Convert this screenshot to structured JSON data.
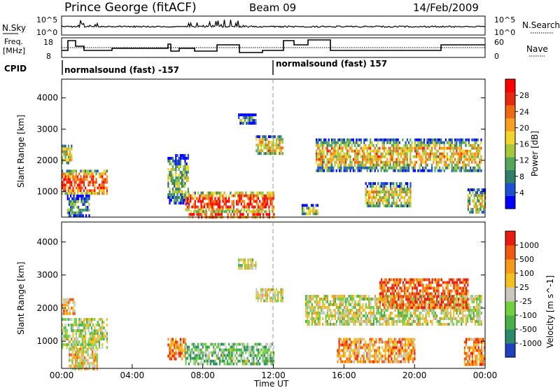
{
  "header": {
    "title": "Prince George (fitACF)",
    "beam": "Beam 09",
    "date": "14/Feb/2009"
  },
  "panels": {
    "nsky_label": "N.Sky",
    "nsearch_label": "N.Search",
    "freq_label_1": "Freq.",
    "freq_label_2": "[MHz]",
    "nave_label": "Nave",
    "cpid_label": "CPID",
    "nsky_ticks": [
      "10^5",
      "10^0"
    ],
    "nsearch_ticks": [
      "10^5",
      "10^0"
    ],
    "freq_ticks": [
      "18",
      "8"
    ],
    "nave_ticks": [
      "60",
      "0"
    ],
    "cpid_left": "normalsound (fast) -157",
    "cpid_right": "normalsound (fast) 157"
  },
  "chart_data": [
    {
      "type": "heatmap",
      "name": "power",
      "ylabel": "Slant Range [km]",
      "yticks": [
        "4000",
        "3000",
        "2000",
        "1000"
      ],
      "ylim": [
        180,
        4600
      ],
      "colorbar_label": "Power [dB]",
      "colorbar_ticks": [
        "28",
        "24",
        "20",
        "16",
        "12",
        "8",
        "4"
      ],
      "colors": [
        "#0000ff",
        "#1e50d2",
        "#2f7f6a",
        "#55a85a",
        "#a8c83a",
        "#f2d52b",
        "#f5a020",
        "#ee6a12",
        "#e62a10",
        "#ff0000"
      ],
      "patches": [
        {
          "t0": 0.0,
          "t1": 2.6,
          "r0": 900,
          "r1": 1700,
          "level": 0.8
        },
        {
          "t0": 0.0,
          "t1": 0.6,
          "r0": 1900,
          "r1": 2500,
          "level": 0.6
        },
        {
          "t0": 0.3,
          "t1": 1.6,
          "r0": 200,
          "r1": 900,
          "level": 0.3
        },
        {
          "t0": 6.0,
          "t1": 7.2,
          "r0": 600,
          "r1": 2200,
          "level": 0.4
        },
        {
          "t0": 7.0,
          "t1": 12.0,
          "r0": 400,
          "r1": 1000,
          "level": 0.85
        },
        {
          "t0": 7.2,
          "t1": 12.0,
          "r0": 200,
          "r1": 400,
          "level": 0.95
        },
        {
          "t0": 10.0,
          "t1": 11.0,
          "r0": 3200,
          "r1": 3500,
          "level": 0.3
        },
        {
          "t0": 11.0,
          "t1": 12.5,
          "r0": 2200,
          "r1": 2800,
          "level": 0.6
        },
        {
          "t0": 13.6,
          "t1": 14.5,
          "r0": 250,
          "r1": 600,
          "level": 0.45
        },
        {
          "t0": 14.4,
          "t1": 23.8,
          "r0": 1700,
          "r1": 2700,
          "level": 0.6
        },
        {
          "t0": 17.2,
          "t1": 19.8,
          "r0": 500,
          "r1": 1300,
          "level": 0.55
        },
        {
          "t0": 23.0,
          "t1": 24.0,
          "r0": 300,
          "r1": 1100,
          "level": 0.5
        }
      ]
    },
    {
      "type": "heatmap",
      "name": "velocity",
      "xlabel": "Time UT",
      "ylabel": "Slant Range [km]",
      "xticks": [
        "00:00",
        "04:00",
        "08:00",
        "12:00",
        "16:00",
        "20:00",
        "00:00"
      ],
      "yticks": [
        "4000",
        "3000",
        "2000",
        "1000"
      ],
      "ylim": [
        180,
        4600
      ],
      "colorbar_label": "Velocity [m s^-1]",
      "colorbar_ticks": [
        "1000",
        "500",
        "100",
        "25",
        "-25",
        "-100",
        "-500",
        "-1000"
      ],
      "colors": [
        "#2040c0",
        "#2a8a6a",
        "#48b048",
        "#70d040",
        "#c8c8c0",
        "#f2c020",
        "#f59a18",
        "#ee5a10",
        "#e81c10"
      ],
      "patches": [
        {
          "t0": 0.0,
          "t1": 2.6,
          "r0": 800,
          "r1": 1700,
          "level": 0.45
        },
        {
          "t0": 0.0,
          "t1": 0.7,
          "r0": 1800,
          "r1": 2300,
          "level": 0.7
        },
        {
          "t0": 0.4,
          "t1": 2.0,
          "r0": 200,
          "r1": 800,
          "level": 0.6
        },
        {
          "t0": 6.0,
          "t1": 7.0,
          "r0": 500,
          "r1": 1100,
          "level": 0.75
        },
        {
          "t0": 7.0,
          "t1": 12.0,
          "r0": 300,
          "r1": 950,
          "level": 0.35
        },
        {
          "t0": 10.0,
          "t1": 11.0,
          "r0": 3200,
          "r1": 3500,
          "level": 0.5
        },
        {
          "t0": 11.0,
          "t1": 12.5,
          "r0": 2200,
          "r1": 2600,
          "level": 0.5
        },
        {
          "t0": 13.8,
          "t1": 23.8,
          "r0": 1500,
          "r1": 2400,
          "level": 0.5
        },
        {
          "t0": 15.6,
          "t1": 20.0,
          "r0": 400,
          "r1": 1100,
          "level": 0.7
        },
        {
          "t0": 18.0,
          "t1": 23.0,
          "r0": 2000,
          "r1": 2900,
          "level": 0.85
        },
        {
          "t0": 22.8,
          "t1": 24.0,
          "r0": 300,
          "r1": 1100,
          "level": 0.75
        }
      ]
    }
  ]
}
